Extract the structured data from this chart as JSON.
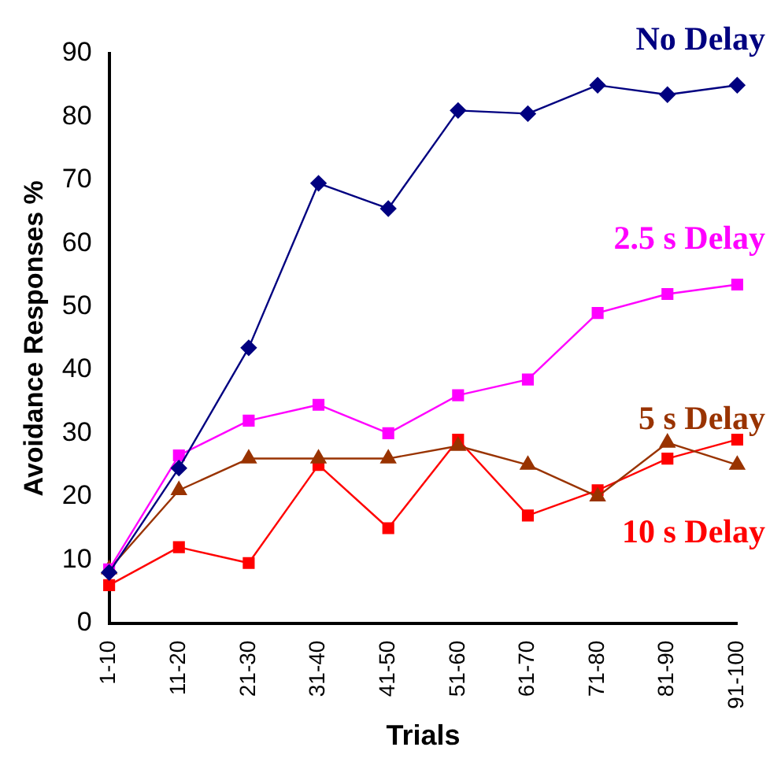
{
  "chart_data": {
    "type": "line",
    "xlabel": "Trials",
    "ylabel": "Avoidance Responses %",
    "categories": [
      "1-10",
      "11-20",
      "21-30",
      "31-40",
      "41-50",
      "51-60",
      "61-70",
      "71-80",
      "81-90",
      "91-100"
    ],
    "ylim": [
      0,
      90
    ],
    "yticks": [
      0,
      10,
      20,
      30,
      40,
      50,
      60,
      70,
      80,
      90
    ],
    "grid": false,
    "legend": false,
    "line_style": "solid",
    "series": [
      {
        "name": "No Delay",
        "color": "#000080",
        "marker": "diamond",
        "values": [
          8,
          24.5,
          43.5,
          69.5,
          65.5,
          81,
          80.5,
          85,
          83.5,
          85
        ]
      },
      {
        "name": "2.5 s Delay",
        "color": "#ff00ff",
        "marker": "square",
        "values": [
          8.5,
          26.5,
          32,
          34.5,
          30,
          36,
          38.5,
          49,
          52,
          53.5
        ]
      },
      {
        "name": "5 s Delay",
        "color": "#993300",
        "marker": "triangle",
        "values": [
          8.5,
          21,
          26,
          26,
          26,
          28,
          25,
          20,
          28.5,
          25
        ]
      },
      {
        "name": "10 s Delay",
        "color": "#ff0000",
        "marker": "square",
        "values": [
          6,
          12,
          9.5,
          25,
          15,
          29,
          17,
          21,
          26,
          29
        ]
      }
    ]
  }
}
